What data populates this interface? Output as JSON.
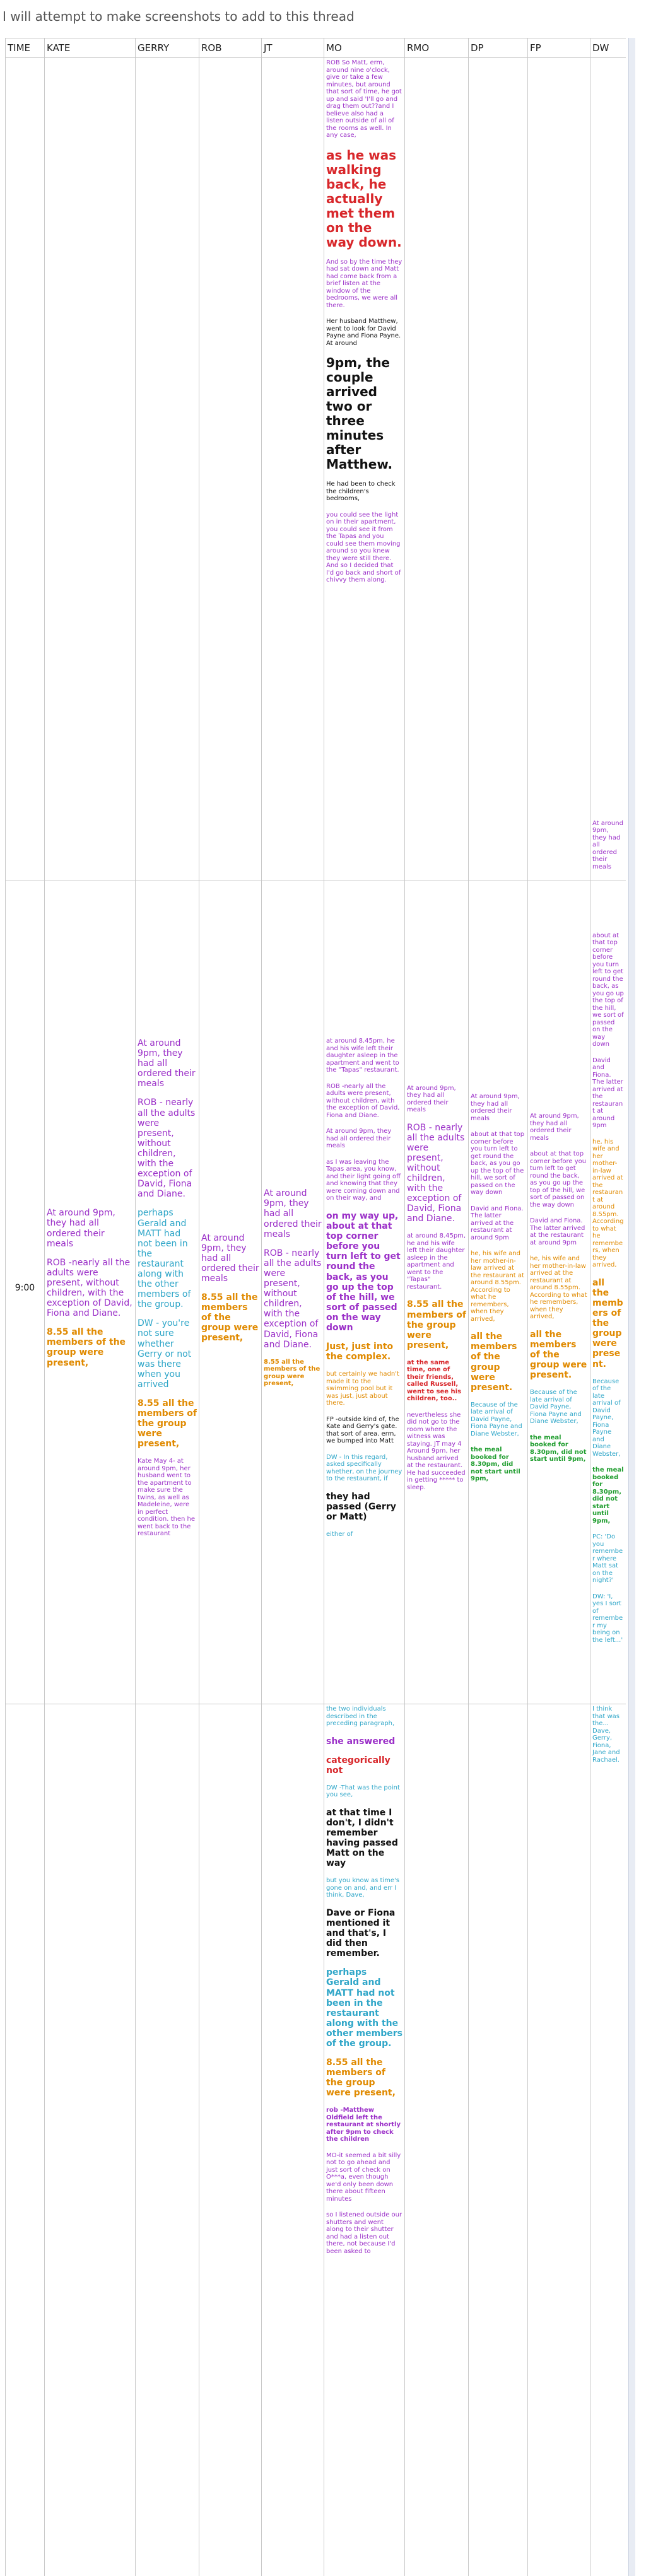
{
  "header": {
    "title": "I will attempt to make screenshots to add to this thread"
  },
  "table": {
    "columns": [
      "TIME",
      "KATE",
      "GERRY",
      "ROB",
      "JT",
      "MO",
      "RMO",
      "DP",
      "FP",
      "DW"
    ],
    "colors": {
      "purple": "#9b30c8",
      "orange": "#e08a00",
      "teal": "#2fa6c8",
      "red": "#d8262a",
      "green": "#1f9d2e",
      "black": "#111111"
    },
    "rows": [
      {
        "cells": [
          [],
          [],
          [],
          [],
          [],
          [
            {
              "text": "ROB So Matt, erm, around nine o'clock, give or take a few minutes, but around that sort of time, he got up and said 'I'll go and drag them out??and I believe also had a listen outside of all of the rooms as well. In any case,",
              "color": "purple",
              "size": "small"
            },
            {
              "text": "as he was walking back, he actually met them on the way down.",
              "color": "red",
              "size": "large",
              "bold": true
            },
            {
              "text": "And so by the time they had sat down and Matt had come back from a brief listen at the window of the bedrooms, we were all there.",
              "color": "purple",
              "size": "small"
            },
            {
              "text": "Her husband Matthew, went to look for David Payne and Fiona Payne. At around",
              "color": "black",
              "size": "small"
            },
            {
              "text": "9pm, the couple arrived two or three minutes after Matthew.",
              "color": "black",
              "size": "large",
              "bold": true
            },
            {
              "text": "He had been to check the children's bedrooms,",
              "color": "black",
              "size": "small"
            },
            {
              "text": "you could see the light on in their apartment, you could see it from the Tapas and you could see them moving around so you knew they were still there. And so I decided that I'd go back and short of chivvy them along.",
              "color": "purple",
              "size": "small"
            }
          ],
          [],
          [],
          [],
          [
            {
              "text": "At around 9pm, they had all ordered their meals",
              "color": "purple",
              "size": "small"
            }
          ]
        ]
      },
      {
        "cells": [
          [
            {
              "text": "9:00",
              "color": "black",
              "size": "normal"
            }
          ],
          [
            {
              "text": "At around 9pm, they had all ordered their meals",
              "color": "purple",
              "size": "normal"
            },
            {
              "text": "ROB -nearly all the adults were present, without children, with the exception of David, Fiona and Diane.",
              "color": "purple",
              "size": "normal"
            },
            {
              "text": "8.55 all the members of the group were present,",
              "color": "orange",
              "size": "normal",
              "bold": true
            }
          ],
          [
            {
              "text": "At around 9pm, they had all ordered their meals",
              "color": "purple",
              "size": "normal"
            },
            {
              "text": "ROB - nearly all the adults were present, without children, with the exception of David, Fiona and Diane.",
              "color": "purple",
              "size": "normal"
            },
            {
              "text": "perhaps Gerald and MATT had not been in the restaurant along with the other members of the group.",
              "color": "teal",
              "size": "normal"
            },
            {
              "text": "DW - you're not sure whether Gerry or not was there when you arrived",
              "color": "teal",
              "size": "normal"
            },
            {
              "text": "8.55 all the members of the group were present,",
              "color": "orange",
              "size": "normal",
              "bold": true
            },
            {
              "text": "Kate May 4- at around 9pm, her husband went to the apartment to make sure the twins, as well as Madeleine, were in perfect condition. then he went back to the restaurant",
              "color": "purple",
              "size": "small"
            }
          ],
          [
            {
              "text": "At around 9pm, they had all ordered their meals",
              "color": "purple",
              "size": "normal"
            },
            {
              "text": "8.55 all the members of the group were present,",
              "color": "orange",
              "size": "normal",
              "bold": true
            }
          ],
          [
            {
              "text": "At around 9pm, they had all ordered their meals",
              "color": "purple",
              "size": "normal"
            },
            {
              "text": "ROB - nearly all the adults were present, without children, with the exception of David, Fiona and Diane.",
              "color": "purple",
              "size": "normal"
            },
            {
              "text": "8.55 all the members of the group were present,",
              "color": "orange",
              "size": "small",
              "bold": true
            }
          ],
          [
            {
              "text": "at around 8.45pm, he and his wife left their daughter asleep in the apartment and went to the \"Tapas\" restaurant.",
              "color": "purple",
              "size": "small"
            },
            {
              "text": "ROB -nearly all the adults were present, without children, with the exception of David, Fiona and Diane.",
              "color": "purple",
              "size": "small"
            },
            {
              "text": "At around 9pm, they had all ordered their meals",
              "color": "purple",
              "size": "small"
            },
            {
              "text": "as I was leaving the Tapas area, you know, and their light going off and knowing that they were coming down and on their way, and",
              "color": "purple",
              "size": "small"
            },
            {
              "text": "on my way up, about at that top corner before you turn left to get round the back, as you go up the top of the hill, we sort of passed on the way down",
              "color": "purple",
              "size": "normal",
              "bold": true
            },
            {
              "text": "Just, just into the complex.",
              "color": "orange",
              "size": "normal",
              "bold": true
            },
            {
              "text": "but certainly we hadn't made it to the swimming pool but it was just, just about there.",
              "color": "orange",
              "size": "small"
            },
            {
              "text": "FP -outside kind of, the Kate and Gerry's gate. that sort of area. erm, we bumped into Matt",
              "color": "black",
              "size": "small"
            },
            {
              "text": "DW - In this regard, asked specifically whether, on the journey to the restaurant, if",
              "color": "teal",
              "size": "small"
            },
            {
              "text": "they had passed (Gerry or Matt)",
              "color": "black",
              "size": "normal",
              "bold": true
            },
            {
              "text": "either of",
              "color": "teal",
              "size": "small"
            }
          ],
          [
            {
              "text": "At around 9pm, they had all ordered their meals",
              "color": "purple",
              "size": "small"
            },
            {
              "text": "ROB - nearly all the adults were present, without children, with the exception of David, Fiona and Diane.",
              "color": "purple",
              "size": "normal"
            },
            {
              "text": "at around 8.45pm, he and his wife left their daughter asleep in the apartment and went to the \"Tapas\" restaurant.",
              "color": "purple",
              "size": "small"
            },
            {
              "text": "8.55 all the members of the group were present,",
              "color": "orange",
              "size": "normal",
              "bold": true
            },
            {
              "text": "at the same time, one of their friends, called Russell, went to see his children, too..",
              "color": "red",
              "size": "small",
              "bold": true
            },
            {
              "text": "nevertheless she did not go to the room where the witness was staying. JT may 4 Around 9pm, her husband arrived at the restaurant. He had succeeded in getting ***** to sleep.",
              "color": "purple",
              "size": "small"
            }
          ],
          [
            {
              "text": "At around 9pm, they had all ordered their meals",
              "color": "purple",
              "size": "small"
            },
            {
              "text": "about at that top corner before you turn left to get round the back, as you go up the top of the hill, we sort of passed on the way down",
              "color": "purple",
              "size": "small"
            },
            {
              "text": "David and Fiona. The latter arrived at the restaurant at around 9pm",
              "color": "purple",
              "size": "small"
            },
            {
              "text": "he, his wife and her mother-in-law arrived at the restaurant at around 8.55pm. According to what he remembers, when they arrived,",
              "color": "orange",
              "size": "small"
            },
            {
              "text": "all the members of the group were present.",
              "color": "orange",
              "size": "normal",
              "bold": true
            },
            {
              "text": "Because of the late arrival of David Payne, Fiona Payne and Diane Webster,",
              "color": "teal",
              "size": "small"
            },
            {
              "text": "the meal booked for 8.30pm, did not start until 9pm,",
              "color": "green",
              "size": "small",
              "bold": true
            }
          ],
          [
            {
              "text": "At around 9pm, they had all ordered their meals",
              "color": "purple",
              "size": "small"
            },
            {
              "text": "about at that top corner before you turn left to get round the back, as you go up the top of the hill, we sort of passed on the way down",
              "color": "purple",
              "size": "small"
            },
            {
              "text": "David and Fiona. The latter arrived at the restaurant at around 9pm",
              "color": "purple",
              "size": "small"
            },
            {
              "text": "he, his wife and her mother-in-law arrived at the restaurant at around 8.55pm. According to what he remembers, when they arrived,",
              "color": "orange",
              "size": "small"
            },
            {
              "text": "all the members of the group were present.",
              "color": "orange",
              "size": "normal",
              "bold": true
            },
            {
              "text": "Because of the late arrival of David Payne, Fiona Payne and Diane Webster,",
              "color": "teal",
              "size": "small"
            },
            {
              "text": "the meal booked for 8.30pm, did not start until 9pm,",
              "color": "green",
              "size": "small",
              "bold": true
            }
          ],
          [
            {
              "text": "about at that top corner before you turn left to get round the back, as you go up the top of the hill, we sort of passed on the way down",
              "color": "purple",
              "size": "small"
            },
            {
              "text": "David and Fiona. The latter arrived at the restaurant at around 9pm",
              "color": "purple",
              "size": "small"
            },
            {
              "text": "he, his wife and her mother-in-law arrived at the restaurant at around 8.55pm. According to what he remembers, when they arrived,",
              "color": "orange",
              "size": "small"
            },
            {
              "text": "all the members of the group were present.",
              "color": "orange",
              "size": "normal",
              "bold": true
            },
            {
              "text": "Because of the late arrival of David Payne, Fiona Payne and Diane Webster,",
              "color": "teal",
              "size": "small"
            },
            {
              "text": "the meal booked for 8.30pm, did not start until 9pm,",
              "color": "green",
              "size": "small",
              "bold": true
            },
            {
              "text": "PC: 'Do you remember where Matt sat on the night?'",
              "color": "teal",
              "size": "small"
            },
            {
              "text": "DW: 'I, yes I sort of remember my being on the left...'",
              "color": "teal",
              "size": "small"
            }
          ]
        ]
      },
      {
        "cells": [
          [],
          [],
          [],
          [],
          [],
          [
            {
              "text": "the two individuals described in the preceding paragraph,",
              "color": "teal",
              "size": "small"
            },
            {
              "text": "she answered",
              "color": "purple",
              "size": "normal",
              "bold": true
            },
            {
              "text": "categorically not",
              "color": "red",
              "size": "normal",
              "bold": true
            },
            {
              "text": "DW -That was the point you see,",
              "color": "teal",
              "size": "small"
            },
            {
              "text": "at that time I don't, I didn't remember having passed Matt on the way",
              "color": "black",
              "size": "normal",
              "bold": true
            },
            {
              "text": "but you know as time's gone on and, and err I think, Dave,",
              "color": "teal",
              "size": "small"
            },
            {
              "text": "Dave or Fiona mentioned it and that's, I did then remember.",
              "color": "black",
              "size": "normal",
              "bold": true
            },
            {
              "text": "perhaps Gerald and MATT had not been in the restaurant along with the other members of the group.",
              "color": "teal",
              "size": "normal",
              "bold": true
            },
            {
              "text": "8.55 all the members of the group were present,",
              "color": "orange",
              "size": "normal",
              "bold": true
            },
            {
              "text": "rob -Matthew Oldfield left the restaurant at shortly after 9pm to check the children",
              "color": "purple",
              "size": "small",
              "bold": true
            },
            {
              "text": "MO-it seemed a bit silly not to go ahead and just sort of check on O***a, even though we'd only been down there about fifteen minutes",
              "color": "purple",
              "size": "small"
            },
            {
              "text": "so I listened outside our shutters and went along to their shutter and had a listen out there, not because I'd been asked to",
              "color": "purple",
              "size": "small"
            }
          ],
          [],
          [],
          [],
          [
            {
              "text": "I think that was the... Dave, Gerry, Fiona, Jane and Rachael.",
              "color": "teal",
              "size": "small"
            }
          ]
        ]
      }
    ]
  }
}
